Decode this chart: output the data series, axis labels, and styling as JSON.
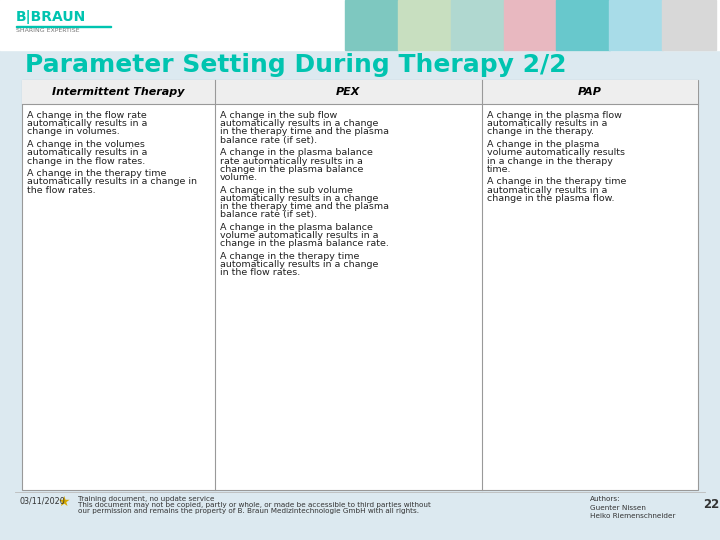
{
  "title": "Parameter Setting During Therapy 2/2",
  "title_color": "#00c4b0",
  "title_fontsize": 18,
  "bg_color": "#dce9f0",
  "table_bg": "#ffffff",
  "header_text_color": "#000000",
  "header_fontsize": 8,
  "cell_fontsize": 6.8,
  "headers": [
    "Intermittent Therapy",
    "PEX",
    "PAP"
  ],
  "col1_lines": [
    "A change in the flow rate",
    "automatically results in a",
    "change in volumes.",
    "",
    "A change in the volumes",
    "automatically results in a",
    "change in the flow rates.",
    "",
    "A change in the therapy time",
    "automatically results in a change in",
    "the flow rates."
  ],
  "col2_lines": [
    "A change in the sub flow",
    "automatically results in a change",
    "in the therapy time and the plasma",
    "balance rate (if set).",
    "",
    "A change in the plasma balance",
    "rate automatically results in a",
    "change in the plasma balance",
    "volume.",
    "",
    "A change in the sub volume",
    "automatically results in a change",
    "in the therapy time and the plasma",
    "balance rate (if set).",
    "",
    "A change in the plasma balance",
    "volume automatically results in a",
    "change in the plasma balance rate.",
    "",
    "A change in the therapy time",
    "automatically results in a change",
    "in the flow rates."
  ],
  "col3_lines": [
    "A change in the plasma flow",
    "automatically results in a",
    "change in the therapy.",
    "",
    "A change in the plasma",
    "volume automatically results",
    "in a change in the therapy",
    "time.",
    "",
    "A change in the therapy time",
    "automatically results in a",
    "change in the plasma flow."
  ],
  "footer_date": "03/11/2020",
  "footer_line1": "Training document, no update service",
  "footer_line2": "This document may not be copied, partly or whole, or made be accessible to third parties without",
  "footer_line3": "our permission and remains the property of B. Braun Medizintechnologie GmbH with all rights.",
  "footer_authors": "Authors:\nGuenter Nissen\nHeiko Riemenschneider",
  "footer_page": "22",
  "header_bar_color": "#00c4b0",
  "border_color": "#999999",
  "cell_text_color": "#222222",
  "top_strip_colors": [
    "#7ec8c0",
    "#c8dfc0",
    "#b0d8d0",
    "#e8b8c0",
    "#68c8cc",
    "#a8dce8",
    "#d8d8d8"
  ],
  "logo_main": "B|BRAUN",
  "logo_sub": "SHARING EXPERTISE"
}
